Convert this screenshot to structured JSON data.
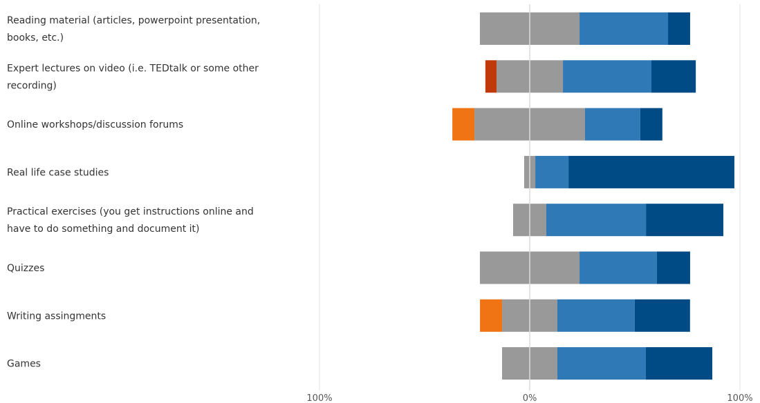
{
  "chart_data": {
    "type": "bar",
    "orientation": "horizontal",
    "stacking": "diverging",
    "grid": true,
    "legend": "none",
    "xlim": [
      -100,
      100
    ],
    "x_ticks": [
      {
        "value": -100,
        "label": "100%"
      },
      {
        "value": 0,
        "label": "0%"
      },
      {
        "value": 100,
        "label": "100%"
      }
    ],
    "categories": [
      [
        "Reading material (articles, powerpoint presentation,",
        "books, etc.)"
      ],
      [
        "Expert lectures on video (i.e. TEDtalk or some other",
        "recording)"
      ],
      [
        "Online workshops/discussion forums"
      ],
      [
        "Real life case studies"
      ],
      [
        "Practical exercises (you get instructions online and",
        "have to do something and document it)"
      ],
      [
        "Quizzes"
      ],
      [
        "Writing assingments"
      ],
      [
        "Games"
      ]
    ],
    "series": [
      {
        "color": "#c0390a",
        "side": "negative",
        "values": [
          0,
          5.3,
          0,
          0,
          0,
          0,
          0,
          0
        ]
      },
      {
        "color": "#f07314",
        "side": "negative",
        "values": [
          0,
          0,
          10.5,
          0,
          0,
          0,
          10.5,
          0
        ]
      },
      {
        "color": "#999999",
        "side": "neutral",
        "values": [
          47.4,
          31.6,
          52.6,
          5.3,
          15.8,
          47.4,
          26.3,
          26.3
        ]
      },
      {
        "color": "#2e79b6",
        "side": "positive",
        "values": [
          42.1,
          42.1,
          26.3,
          15.8,
          47.4,
          36.8,
          36.8,
          42.1
        ]
      },
      {
        "color": "#004a85",
        "side": "positive",
        "values": [
          10.5,
          21.1,
          10.5,
          78.9,
          36.8,
          15.8,
          26.3,
          31.6
        ]
      }
    ]
  }
}
